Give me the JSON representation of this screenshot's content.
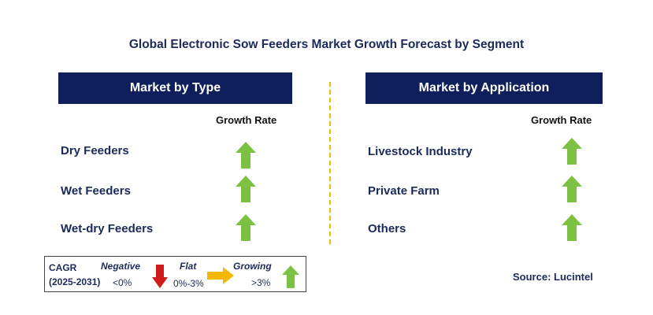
{
  "title": "Global Electronic Sow Feeders Market Growth Forecast by Segment",
  "left_panel": {
    "header": "Market by Type",
    "growth_rate_label": "Growth Rate",
    "rows": [
      {
        "label": "Dry Feeders",
        "trend": "growing"
      },
      {
        "label": "Wet Feeders",
        "trend": "growing"
      },
      {
        "label": "Wet-dry Feeders",
        "trend": "growing"
      }
    ]
  },
  "right_panel": {
    "header": "Market by Application",
    "growth_rate_label": "Growth Rate",
    "rows": [
      {
        "label": "Livestock Industry",
        "trend": "growing"
      },
      {
        "label": "Private Farm",
        "trend": "growing"
      },
      {
        "label": "Others",
        "trend": "growing"
      }
    ]
  },
  "legend": {
    "cagr_label": "CAGR",
    "period": "(2025-2031)",
    "negative_label": "Negative",
    "negative_range": "<0%",
    "flat_label": "Flat",
    "flat_range": "0%-3%",
    "growing_label": "Growing",
    "growing_range": ">3%"
  },
  "source": "Source: Lucintel",
  "colors": {
    "header_bg": "#0f1f5c",
    "growing_arrow": "#7dc142",
    "negative_arrow": "#d11a1a",
    "flat_arrow": "#f5b800",
    "divider": "#f5b800"
  }
}
